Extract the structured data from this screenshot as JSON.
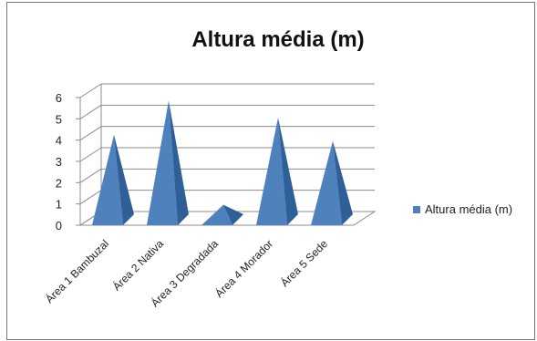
{
  "chart_data": {
    "type": "bar",
    "title": "Altura média (m)",
    "categories": [
      "Área 1 Bambuzal",
      "Área 2 Nativa",
      "Área 3 Degradada",
      "Área 4 Morador",
      "Área 5 Sede"
    ],
    "series": [
      {
        "name": "Altura média (m)",
        "values": [
          4.0,
          5.6,
          0.7,
          4.8,
          3.7
        ]
      }
    ],
    "y_ticks": [
      "0",
      "1",
      "2",
      "3",
      "4",
      "5",
      "6"
    ],
    "ylim": [
      0,
      6
    ],
    "grid": true,
    "legend": "right",
    "bar_shape": "pyramid",
    "colors": {
      "front": "#4f81bd",
      "side": "#2f5f97",
      "grid": "#8c8c8c"
    }
  }
}
